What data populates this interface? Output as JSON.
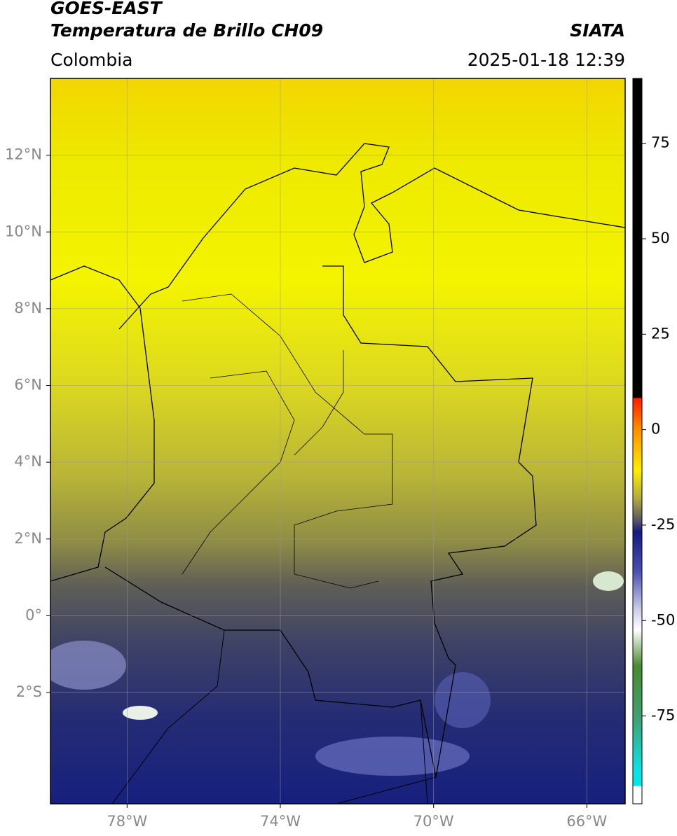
{
  "header": {
    "title": "GOES-EAST",
    "subtitle": "Temperatura de Brillo CH09",
    "source": "SIATA",
    "region": "Colombia",
    "datetime": "2025-01-18 12:39"
  },
  "map": {
    "xlim": [
      -80,
      -65
    ],
    "ylim": [
      -4.9,
      14
    ],
    "xticks": [
      {
        "value": -78,
        "label": "78°W"
      },
      {
        "value": -74,
        "label": "74°W"
      },
      {
        "value": -70,
        "label": "70°W"
      },
      {
        "value": -66,
        "label": "66°W"
      }
    ],
    "yticks": [
      {
        "value": 12,
        "label": "12°N"
      },
      {
        "value": 10,
        "label": "10°N"
      },
      {
        "value": 8,
        "label": "8°N"
      },
      {
        "value": 6,
        "label": "6°N"
      },
      {
        "value": 4,
        "label": "4°N"
      },
      {
        "value": 2,
        "label": "2°N"
      },
      {
        "value": 0,
        "label": "0°"
      },
      {
        "value": -2,
        "label": "2°S"
      }
    ],
    "grid": true
  },
  "colorbar": {
    "lim": [
      -98,
      92
    ],
    "ticks": [
      75,
      50,
      25,
      0,
      -25,
      -50,
      -75
    ]
  }
}
